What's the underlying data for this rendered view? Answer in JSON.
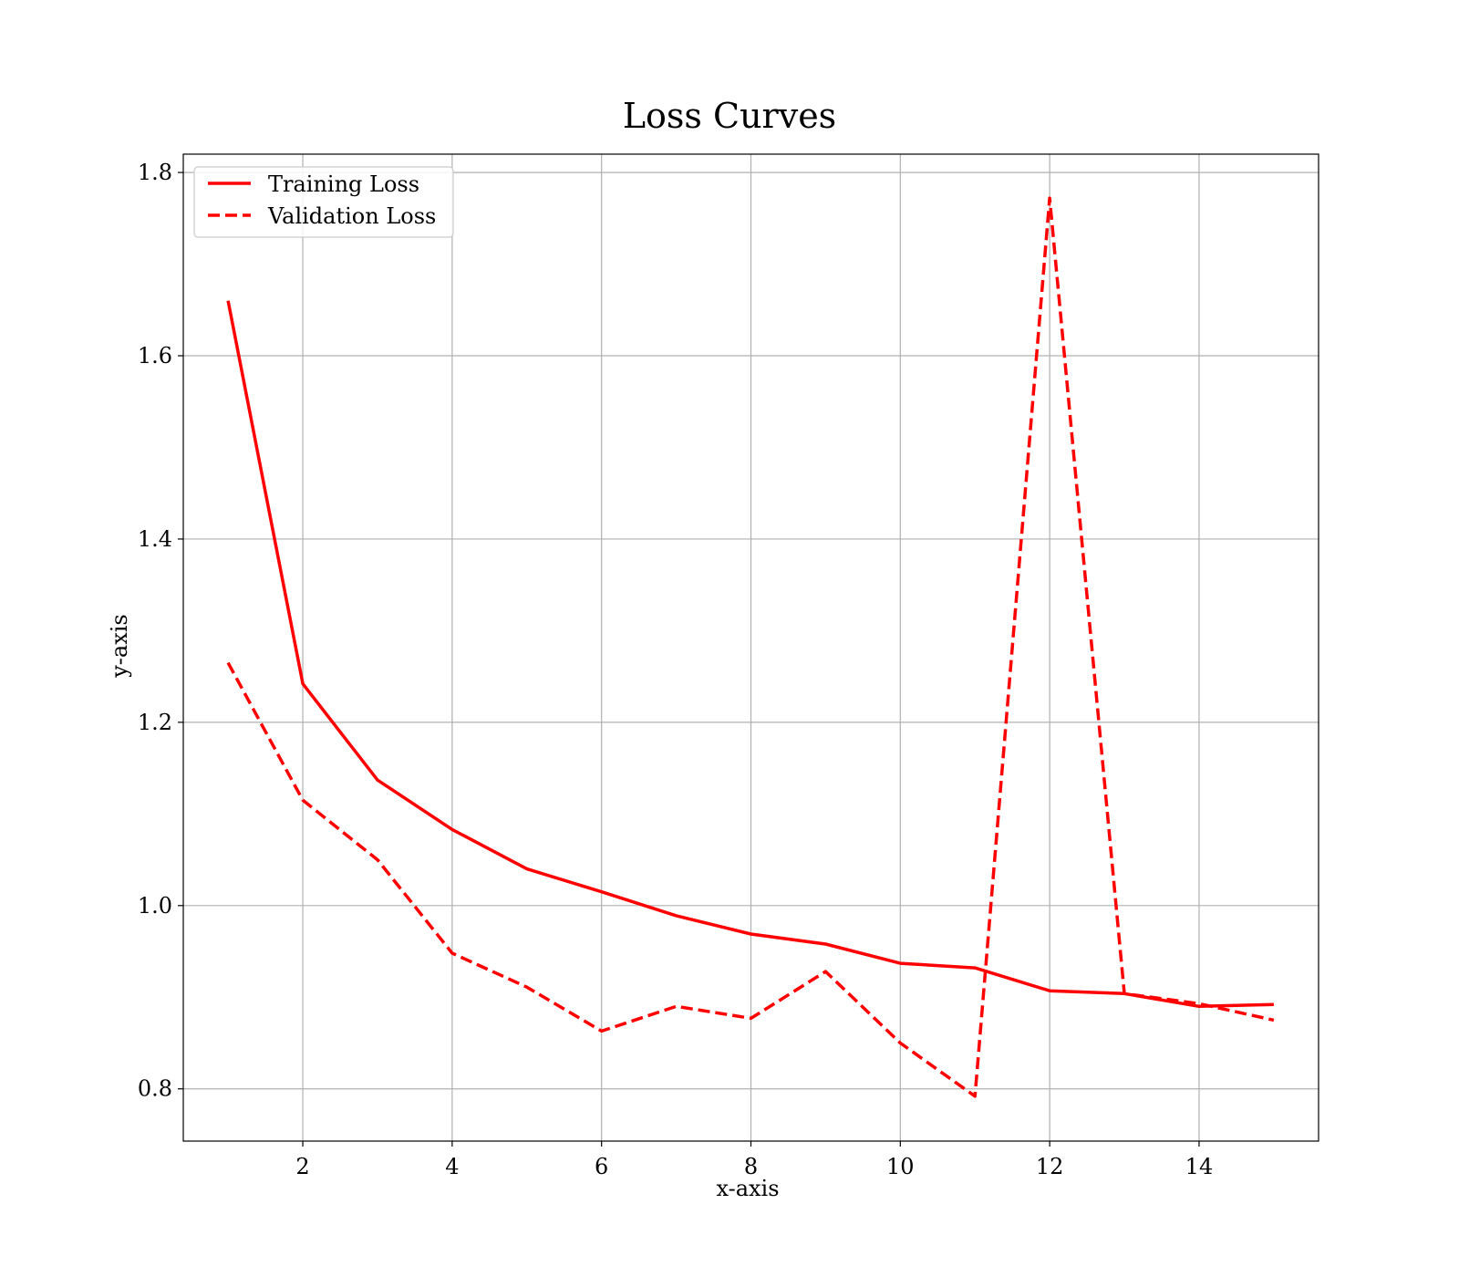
{
  "chart_data": {
    "type": "line",
    "title": "Loss Curves",
    "xlabel": "x-axis",
    "ylabel": "y-axis",
    "xlim": [
      0.4,
      15.6
    ],
    "ylim": [
      0.743,
      1.82
    ],
    "xticks": [
      2,
      4,
      6,
      8,
      10,
      12,
      14
    ],
    "yticks": [
      0.8,
      1.0,
      1.2,
      1.4,
      1.6,
      1.8
    ],
    "grid": true,
    "legend_position": "top-left",
    "x": [
      1,
      2,
      3,
      4,
      5,
      6,
      7,
      8,
      9,
      10,
      11,
      12,
      13,
      14,
      15
    ],
    "series": [
      {
        "name": "Training Loss",
        "style": "solid",
        "color": "#ff0000",
        "values": [
          1.66,
          1.242,
          1.137,
          1.083,
          1.04,
          1.015,
          0.989,
          0.969,
          0.958,
          0.937,
          0.932,
          0.907,
          0.904,
          0.89,
          0.892
        ]
      },
      {
        "name": "Validation Loss",
        "style": "dashed",
        "color": "#ff0000",
        "values": [
          1.265,
          1.115,
          1.05,
          0.948,
          0.911,
          0.863,
          0.89,
          0.877,
          0.928,
          0.85,
          0.792,
          1.772,
          0.904,
          0.893,
          0.875
        ]
      }
    ]
  }
}
